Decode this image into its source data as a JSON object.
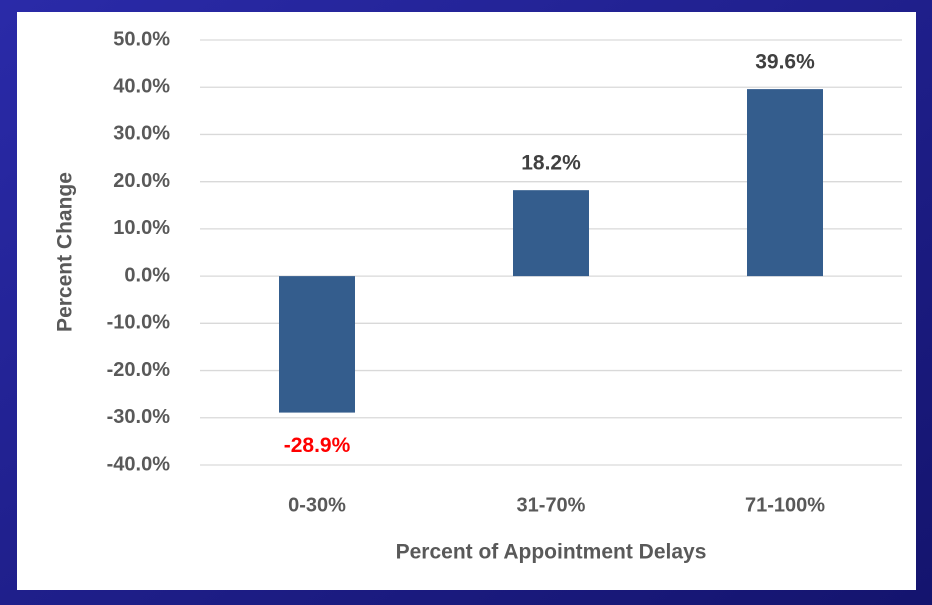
{
  "chart_data": {
    "type": "bar",
    "ylabel": "Percent Change",
    "xlabel": "Percent of Appointment Delays",
    "categories": [
      "0-30%",
      "31-70%",
      "71-100%"
    ],
    "values": [
      -28.9,
      18.2,
      39.6
    ],
    "value_labels": [
      "-28.9%",
      "18.2%",
      "39.6%"
    ],
    "value_label_colors": [
      "#ff0000",
      "#404040",
      "#404040"
    ],
    "color": "#345d8d",
    "ylim": [
      -40,
      50
    ],
    "yticks": [
      {
        "value": -40,
        "label": "-40.0%"
      },
      {
        "value": -30,
        "label": "-30.0%"
      },
      {
        "value": -20,
        "label": "-20.0%"
      },
      {
        "value": -10,
        "label": "-10.0%"
      },
      {
        "value": 0,
        "label": "0.0%"
      },
      {
        "value": 10,
        "label": "10.0%"
      },
      {
        "value": 20,
        "label": "20.0%"
      },
      {
        "value": 30,
        "label": "30.0%"
      },
      {
        "value": 40,
        "label": "40.0%"
      },
      {
        "value": 50,
        "label": "50.0%"
      }
    ],
    "grid": true
  }
}
